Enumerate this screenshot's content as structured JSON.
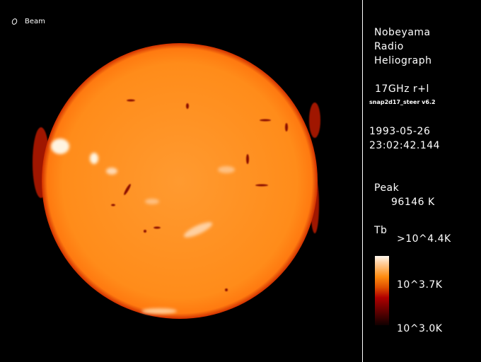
{
  "beam": {
    "label": "Beam",
    "icon": "beam-ellipse-icon"
  },
  "info": {
    "observatory_line1": "Nobeyama",
    "observatory_line2": "Radio",
    "observatory_line3": "Heliograph",
    "frequency": "17GHz r+l",
    "software": "snap2d17_steer v6.2",
    "date": "1993-05-26",
    "time": "23:02:42.144",
    "peak_label": "Peak",
    "peak_value": "96146 K",
    "tb_label": "Tb",
    "scale_max": ">10^4.4K",
    "scale_mid": "10^3.7K",
    "scale_min": "10^3.0K"
  },
  "colors": {
    "disk": "#ff8c1a",
    "limb": "#c02000",
    "bright": "#ffffff",
    "background": "#000000"
  }
}
